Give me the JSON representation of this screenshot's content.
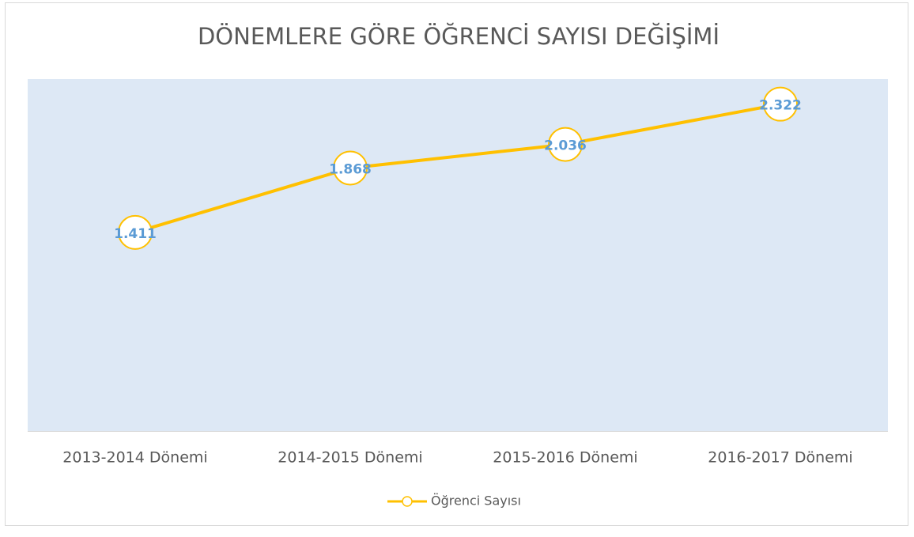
{
  "chart_data": {
    "type": "line",
    "title": "DÖNEMLERE GÖRE ÖĞRENCİ SAYISI DEĞİŞİMİ",
    "categories": [
      "2013-2014 Dönemi",
      "2014-2015 Dönemi",
      "2015-2016 Dönemi",
      "2016-2017 Dönemi"
    ],
    "series": [
      {
        "name": "Öğrenci Sayısı",
        "color": "#ffc000",
        "values": [
          1411,
          1868,
          2036,
          2322
        ],
        "value_labels": [
          "1.411",
          "1.868",
          "2.036",
          "2.322"
        ]
      }
    ],
    "ylim": [
      0,
      2500
    ],
    "plot_background": "#dde8f5",
    "legend": "bottom"
  }
}
